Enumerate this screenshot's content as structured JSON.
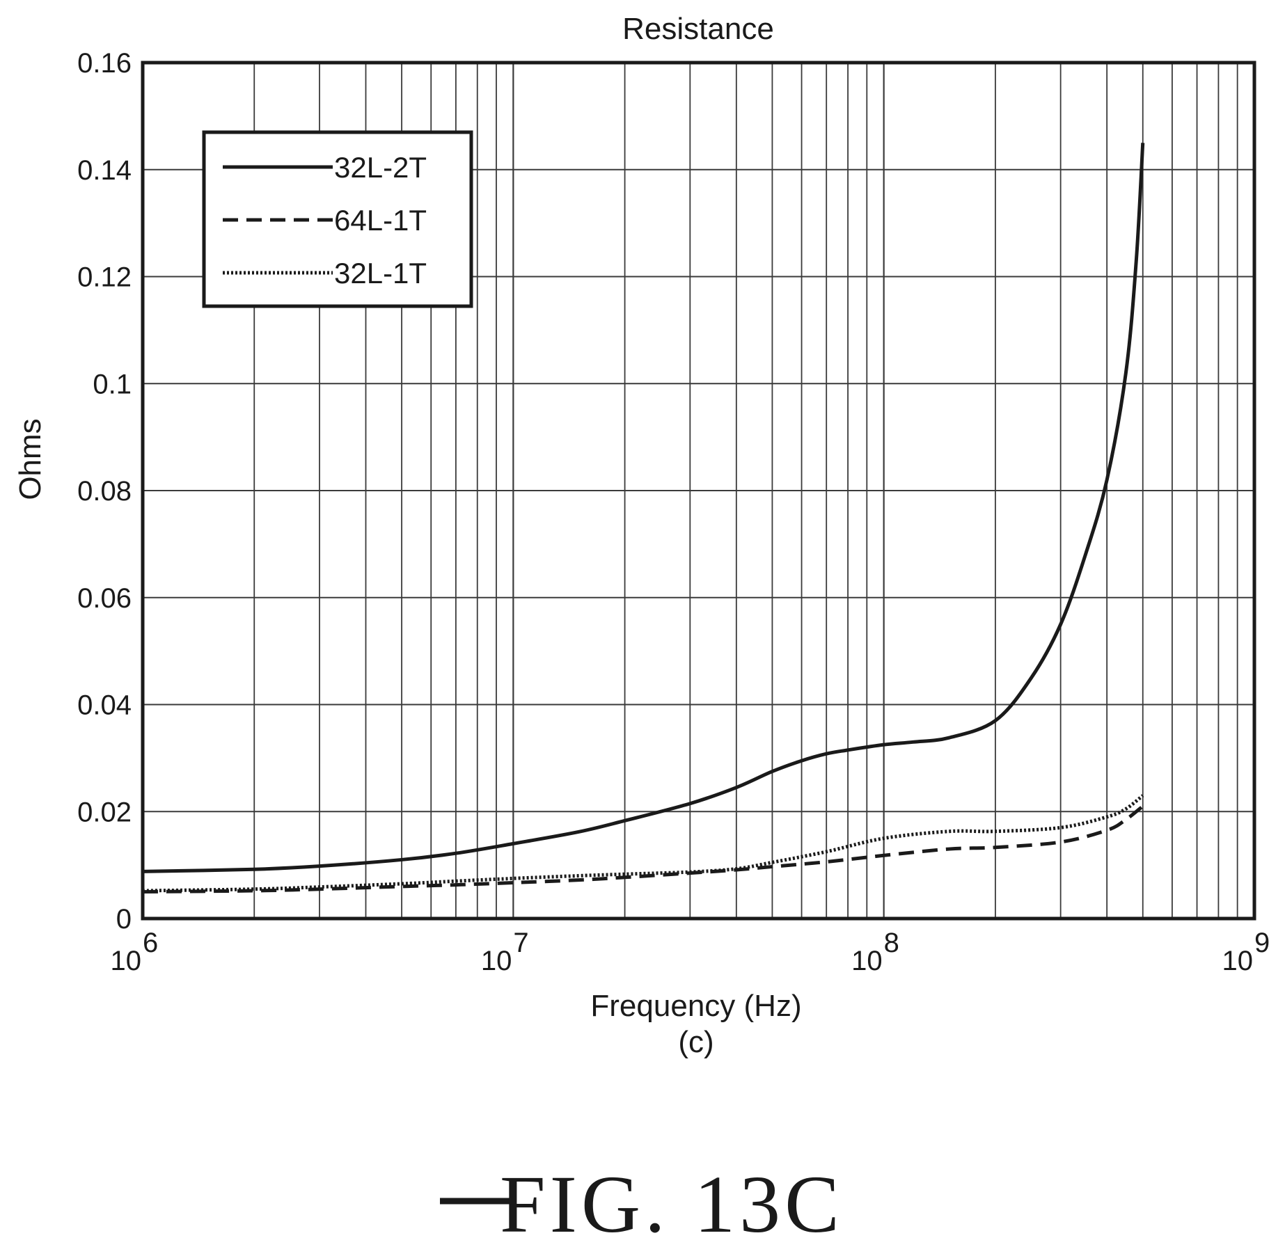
{
  "chart_data": {
    "type": "line",
    "title": "Resistance",
    "xlabel": "Frequency (Hz)",
    "sublabel": "(c)",
    "ylabel": "Ohms",
    "x_scale": "log",
    "xlim": [
      1000000,
      1000000000
    ],
    "ylim": [
      0,
      0.16
    ],
    "grid": true,
    "legend_position": "top-left",
    "x_ticks": [
      {
        "value": 1000000,
        "base": "10",
        "exp": "6"
      },
      {
        "value": 10000000,
        "base": "10",
        "exp": "7"
      },
      {
        "value": 100000000,
        "base": "10",
        "exp": "8"
      },
      {
        "value": 1000000000,
        "base": "10",
        "exp": "9"
      }
    ],
    "y_ticks": [
      {
        "value": 0,
        "label": "0"
      },
      {
        "value": 0.02,
        "label": "0.02"
      },
      {
        "value": 0.04,
        "label": "0.04"
      },
      {
        "value": 0.06,
        "label": "0.06"
      },
      {
        "value": 0.08,
        "label": "0.08"
      },
      {
        "value": 0.1,
        "label": "0.1"
      },
      {
        "value": 0.12,
        "label": "0.12"
      },
      {
        "value": 0.14,
        "label": "0.14"
      },
      {
        "value": 0.16,
        "label": "0.16"
      }
    ],
    "series": [
      {
        "name": "32L-2T",
        "style": "solid",
        "x": [
          1000000,
          2000000,
          3000000,
          5000000,
          7000000,
          10000000,
          15000000,
          20000000,
          30000000,
          40000000,
          50000000,
          60000000,
          70000000,
          80000000,
          100000000,
          120000000,
          150000000,
          200000000,
          250000000,
          300000000,
          350000000,
          400000000,
          450000000,
          480000000,
          500000000
        ],
        "y": [
          0.0088,
          0.0092,
          0.0098,
          0.011,
          0.0122,
          0.014,
          0.0162,
          0.0183,
          0.0215,
          0.0245,
          0.0275,
          0.0295,
          0.0308,
          0.0315,
          0.0325,
          0.033,
          0.0338,
          0.037,
          0.045,
          0.055,
          0.068,
          0.082,
          0.102,
          0.123,
          0.145
        ]
      },
      {
        "name": "64L-1T",
        "style": "dashed",
        "x": [
          1000000,
          2000000,
          3000000,
          5000000,
          7000000,
          10000000,
          15000000,
          20000000,
          30000000,
          40000000,
          50000000,
          70000000,
          100000000,
          150000000,
          200000000,
          300000000,
          400000000,
          450000000,
          500000000
        ],
        "y": [
          0.005,
          0.0052,
          0.0055,
          0.006,
          0.0063,
          0.0067,
          0.0072,
          0.0077,
          0.0085,
          0.0091,
          0.0097,
          0.0106,
          0.0118,
          0.013,
          0.0133,
          0.0143,
          0.0165,
          0.0185,
          0.021
        ]
      },
      {
        "name": "32L-1T",
        "style": "dotted",
        "x": [
          1000000,
          2000000,
          3000000,
          5000000,
          7000000,
          10000000,
          15000000,
          20000000,
          30000000,
          40000000,
          50000000,
          70000000,
          100000000,
          150000000,
          200000000,
          300000000,
          400000000,
          450000000,
          500000000
        ],
        "y": [
          0.0052,
          0.0055,
          0.0059,
          0.0065,
          0.007,
          0.0075,
          0.008,
          0.0083,
          0.0087,
          0.0093,
          0.0105,
          0.0125,
          0.015,
          0.0163,
          0.0163,
          0.017,
          0.019,
          0.0205,
          0.023
        ]
      }
    ]
  },
  "caption": {
    "text": "FIG. 13C"
  }
}
